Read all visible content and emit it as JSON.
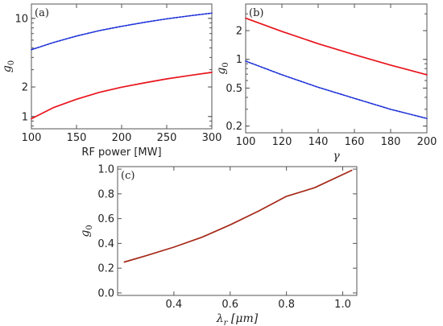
{
  "colors": {
    "red": "#e8141c",
    "blue": "#1a2fd6",
    "brown": "#a52818",
    "frame": "#555555"
  },
  "chart_data": [
    {
      "type": "line",
      "panel_label": "(a)",
      "xlabel": "RF power [MW]",
      "ylabel": "g0",
      "ylabel_main": "g",
      "ylabel_sub": "0",
      "yscale": "log",
      "xlim": [
        100,
        300
      ],
      "ylim": [
        0.75,
        14
      ],
      "x_ticks": [
        100,
        150,
        200,
        250,
        300
      ],
      "y_ticks": [
        1,
        2,
        10
      ],
      "grid": false,
      "series": [
        {
          "color": "blue",
          "style": "dashed",
          "x": [
            100,
            125,
            150,
            175,
            200,
            225,
            250,
            275,
            300
          ],
          "y": [
            4.8,
            5.7,
            6.6,
            7.5,
            8.3,
            9.1,
            9.9,
            10.6,
            11.3
          ]
        },
        {
          "color": "red",
          "style": "solid",
          "x": [
            100,
            125,
            150,
            175,
            200,
            225,
            250,
            275,
            300
          ],
          "y": [
            0.95,
            1.24,
            1.5,
            1.76,
            1.99,
            2.2,
            2.42,
            2.62,
            2.82
          ]
        }
      ]
    },
    {
      "type": "line",
      "panel_label": "(b)",
      "xlabel": "γ",
      "ylabel": "g0",
      "ylabel_main": "g",
      "ylabel_sub": "0",
      "yscale": "log",
      "xlim": [
        100,
        200
      ],
      "ylim": [
        0.17,
        3.8
      ],
      "x_ticks": [
        100,
        120,
        140,
        160,
        180,
        200
      ],
      "y_ticks": [
        0.2,
        0.5,
        1,
        2
      ],
      "grid": false,
      "series": [
        {
          "color": "red",
          "style": "solid",
          "x": [
            100,
            120,
            140,
            160,
            180,
            200
          ],
          "y": [
            2.7,
            1.96,
            1.46,
            1.12,
            0.87,
            0.69
          ]
        },
        {
          "color": "blue",
          "style": "dashed",
          "x": [
            100,
            120,
            140,
            160,
            180,
            200
          ],
          "y": [
            0.96,
            0.69,
            0.51,
            0.39,
            0.3,
            0.24
          ]
        }
      ]
    },
    {
      "type": "line",
      "panel_label": "(c)",
      "xlabel": "λr [μm]",
      "xlabel_main": "λ",
      "xlabel_sub": "r",
      "xlabel_rest": " [μm]",
      "ylabel": "g0",
      "ylabel_main": "g",
      "ylabel_sub": "0",
      "yscale": "linear",
      "xlim": [
        0.2,
        1.05
      ],
      "ylim": [
        -0.02,
        1.02
      ],
      "x_ticks": [
        0.4,
        0.6,
        0.8,
        1.0
      ],
      "x_tick_labels": [
        "0.4",
        "0.6",
        "0.8",
        "1.0"
      ],
      "y_ticks": [
        0.0,
        0.2,
        0.4,
        0.6,
        0.8,
        1.0
      ],
      "y_tick_labels": [
        "0.0",
        "0.2",
        "0.4",
        "0.6",
        "0.8",
        "1.0"
      ],
      "grid": false,
      "series": [
        {
          "color": "brown",
          "style": "solid",
          "x": [
            0.224,
            0.3,
            0.4,
            0.5,
            0.6,
            0.7,
            0.8,
            0.9,
            1.032
          ],
          "y": [
            0.25,
            0.3,
            0.37,
            0.45,
            0.55,
            0.66,
            0.78,
            0.85,
            0.99
          ]
        }
      ]
    }
  ]
}
